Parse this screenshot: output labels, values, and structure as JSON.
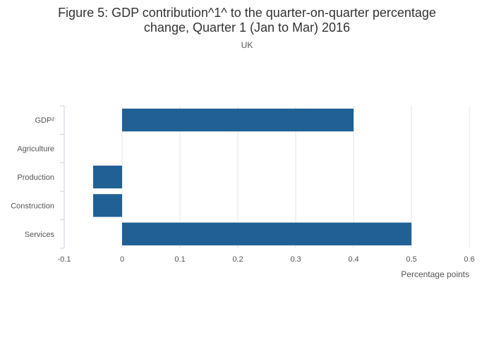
{
  "chart_data": {
    "type": "bar",
    "orientation": "horizontal",
    "title_line1": "Figure 5: GDP contribution^1^ to the quarter-on-quarter percentage",
    "title_line2": "change, Quarter 1 (Jan to Mar) 2016",
    "subtitle": "UK",
    "categories": [
      "GDP²",
      "Agriculture",
      "Production",
      "Construction",
      "Services"
    ],
    "values": [
      0.4,
      0.0,
      -0.05,
      -0.05,
      0.5
    ],
    "xlabel": "Percentage points",
    "xlim": [
      -0.1,
      0.6
    ],
    "xticks": [
      -0.1,
      0,
      0.1,
      0.2,
      0.3,
      0.4,
      0.5,
      0.6
    ],
    "xtick_labels": [
      "-0.1",
      "0",
      "0.1",
      "0.2",
      "0.3",
      "0.4",
      "0.5",
      "0.6"
    ],
    "grid": true,
    "bar_color": "#206095",
    "grid_color": "#e6e6e6",
    "axis_color": "#c9d3e6"
  }
}
